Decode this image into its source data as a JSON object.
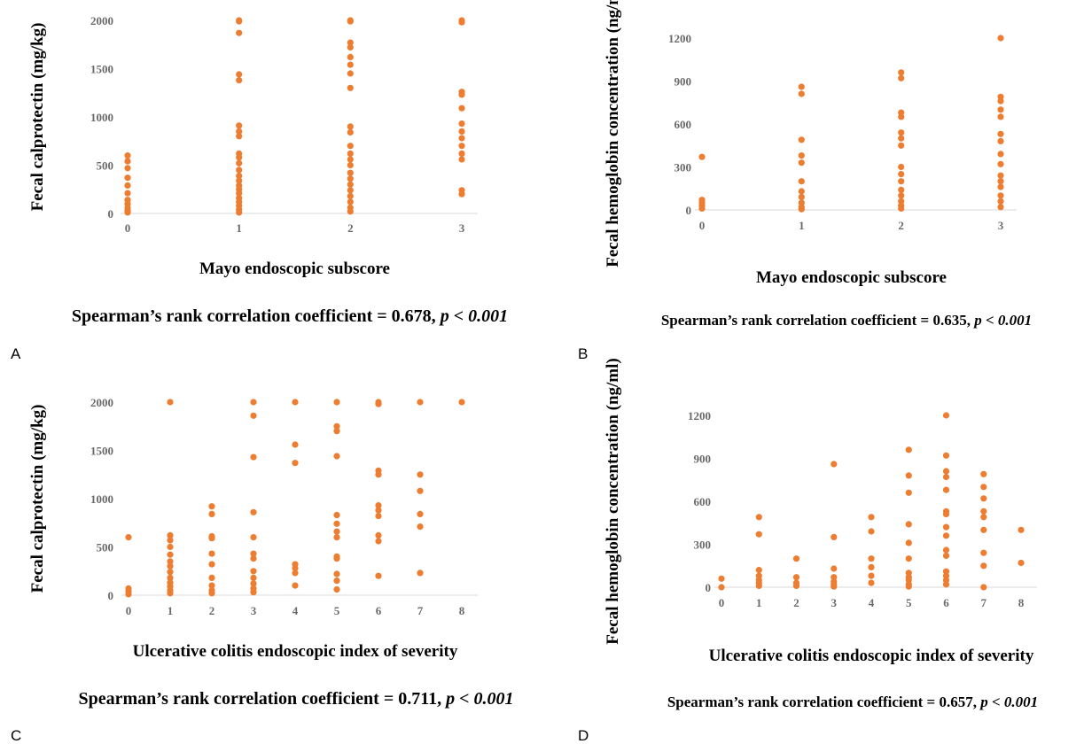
{
  "figure": {
    "background": "#ffffff",
    "marker_color": "#ed7d31"
  },
  "panels": [
    {
      "letter": "A",
      "stat_main": "Spearman’s rank correlation coefficient = 0.678, ",
      "stat_p": "p < 0.001",
      "chart_data": {
        "type": "scatter",
        "xlabel": "Mayo endoscopic subscore",
        "ylabel": "Fecal calprotectin (mg/kg)",
        "xlim": [
          0,
          3
        ],
        "ylim": [
          0,
          2000
        ],
        "xticks": [
          0,
          1,
          2,
          3
        ],
        "yticks": [
          0,
          500,
          1000,
          1500,
          2000
        ],
        "grid": false,
        "points": [
          [
            0,
            600
          ],
          [
            0,
            540
          ],
          [
            0,
            470
          ],
          [
            0,
            370
          ],
          [
            0,
            290
          ],
          [
            0,
            210
          ],
          [
            0,
            140
          ],
          [
            0,
            100
          ],
          [
            0,
            60
          ],
          [
            0,
            30
          ],
          [
            0,
            10
          ],
          [
            1,
            2000
          ],
          [
            1,
            1990
          ],
          [
            1,
            1870
          ],
          [
            1,
            1440
          ],
          [
            1,
            1380
          ],
          [
            1,
            910
          ],
          [
            1,
            850
          ],
          [
            1,
            800
          ],
          [
            1,
            620
          ],
          [
            1,
            580
          ],
          [
            1,
            520
          ],
          [
            1,
            450
          ],
          [
            1,
            390
          ],
          [
            1,
            340
          ],
          [
            1,
            290
          ],
          [
            1,
            250
          ],
          [
            1,
            210
          ],
          [
            1,
            160
          ],
          [
            1,
            120
          ],
          [
            1,
            80
          ],
          [
            1,
            40
          ],
          [
            1,
            10
          ],
          [
            2,
            2000
          ],
          [
            2,
            1990
          ],
          [
            2,
            1770
          ],
          [
            2,
            1720
          ],
          [
            2,
            1620
          ],
          [
            2,
            1540
          ],
          [
            2,
            1450
          ],
          [
            2,
            1300
          ],
          [
            2,
            900
          ],
          [
            2,
            840
          ],
          [
            2,
            700
          ],
          [
            2,
            620
          ],
          [
            2,
            560
          ],
          [
            2,
            500
          ],
          [
            2,
            420
          ],
          [
            2,
            360
          ],
          [
            2,
            300
          ],
          [
            2,
            240
          ],
          [
            2,
            180
          ],
          [
            2,
            120
          ],
          [
            2,
            60
          ],
          [
            2,
            20
          ],
          [
            3,
            2000
          ],
          [
            3,
            1980
          ],
          [
            3,
            1260
          ],
          [
            3,
            1230
          ],
          [
            3,
            1090
          ],
          [
            3,
            930
          ],
          [
            3,
            850
          ],
          [
            3,
            780
          ],
          [
            3,
            700
          ],
          [
            3,
            620
          ],
          [
            3,
            560
          ],
          [
            3,
            240
          ],
          [
            3,
            200
          ]
        ]
      }
    },
    {
      "letter": "B",
      "stat_main": "Spearman’s rank correlation coefficient = 0.635, ",
      "stat_p": "p < 0.001",
      "chart_data": {
        "type": "scatter",
        "xlabel": "Mayo endoscopic subscore",
        "ylabel": "Fecal hemoglobin concentration (ng/ml)",
        "xlim": [
          0,
          3
        ],
        "ylim": [
          0,
          1200
        ],
        "xticks": [
          0,
          1,
          2,
          3
        ],
        "yticks": [
          0,
          300,
          600,
          900,
          1200
        ],
        "grid": false,
        "points": [
          [
            0,
            370
          ],
          [
            0,
            70
          ],
          [
            0,
            50
          ],
          [
            0,
            30
          ],
          [
            0,
            10
          ],
          [
            1,
            860
          ],
          [
            1,
            810
          ],
          [
            1,
            490
          ],
          [
            1,
            380
          ],
          [
            1,
            330
          ],
          [
            1,
            200
          ],
          [
            1,
            130
          ],
          [
            1,
            90
          ],
          [
            1,
            50
          ],
          [
            1,
            20
          ],
          [
            1,
            5
          ],
          [
            2,
            960
          ],
          [
            2,
            920
          ],
          [
            2,
            680
          ],
          [
            2,
            650
          ],
          [
            2,
            540
          ],
          [
            2,
            500
          ],
          [
            2,
            450
          ],
          [
            2,
            300
          ],
          [
            2,
            250
          ],
          [
            2,
            200
          ],
          [
            2,
            140
          ],
          [
            2,
            100
          ],
          [
            2,
            60
          ],
          [
            2,
            30
          ],
          [
            2,
            10
          ],
          [
            3,
            1200
          ],
          [
            3,
            790
          ],
          [
            3,
            760
          ],
          [
            3,
            700
          ],
          [
            3,
            650
          ],
          [
            3,
            530
          ],
          [
            3,
            480
          ],
          [
            3,
            390
          ],
          [
            3,
            320
          ],
          [
            3,
            240
          ],
          [
            3,
            200
          ],
          [
            3,
            160
          ],
          [
            3,
            100
          ],
          [
            3,
            60
          ],
          [
            3,
            20
          ]
        ]
      }
    },
    {
      "letter": "C",
      "stat_main": "Spearman’s rank correlation coefficient = 0.711, ",
      "stat_p": "p < 0.001",
      "chart_data": {
        "type": "scatter",
        "xlabel": "Ulcerative colitis endoscopic index of severity",
        "ylabel": "Fecal calprotectin (mg/kg)",
        "xlim": [
          0,
          8
        ],
        "ylim": [
          0,
          2000
        ],
        "xticks": [
          0,
          1,
          2,
          3,
          4,
          5,
          6,
          7,
          8
        ],
        "yticks": [
          0,
          500,
          1000,
          1500,
          2000
        ],
        "grid": false,
        "points": [
          [
            0,
            600
          ],
          [
            0,
            70
          ],
          [
            0,
            40
          ],
          [
            0,
            10
          ],
          [
            1,
            2000
          ],
          [
            1,
            620
          ],
          [
            1,
            570
          ],
          [
            1,
            500
          ],
          [
            1,
            420
          ],
          [
            1,
            350
          ],
          [
            1,
            300
          ],
          [
            1,
            240
          ],
          [
            1,
            180
          ],
          [
            1,
            130
          ],
          [
            1,
            90
          ],
          [
            1,
            50
          ],
          [
            1,
            20
          ],
          [
            2,
            920
          ],
          [
            2,
            840
          ],
          [
            2,
            610
          ],
          [
            2,
            590
          ],
          [
            2,
            430
          ],
          [
            2,
            320
          ],
          [
            2,
            180
          ],
          [
            2,
            100
          ],
          [
            2,
            50
          ],
          [
            2,
            20
          ],
          [
            3,
            2000
          ],
          [
            3,
            1860
          ],
          [
            3,
            1430
          ],
          [
            3,
            860
          ],
          [
            3,
            600
          ],
          [
            3,
            430
          ],
          [
            3,
            380
          ],
          [
            3,
            250
          ],
          [
            3,
            180
          ],
          [
            3,
            120
          ],
          [
            3,
            70
          ],
          [
            3,
            30
          ],
          [
            4,
            2000
          ],
          [
            4,
            1560
          ],
          [
            4,
            1370
          ],
          [
            4,
            320
          ],
          [
            4,
            280
          ],
          [
            4,
            230
          ],
          [
            4,
            100
          ],
          [
            5,
            2000
          ],
          [
            5,
            1750
          ],
          [
            5,
            1700
          ],
          [
            5,
            1440
          ],
          [
            5,
            830
          ],
          [
            5,
            740
          ],
          [
            5,
            660
          ],
          [
            5,
            600
          ],
          [
            5,
            400
          ],
          [
            5,
            380
          ],
          [
            5,
            220
          ],
          [
            5,
            150
          ],
          [
            5,
            60
          ],
          [
            6,
            2000
          ],
          [
            6,
            1980
          ],
          [
            6,
            1290
          ],
          [
            6,
            1250
          ],
          [
            6,
            930
          ],
          [
            6,
            880
          ],
          [
            6,
            820
          ],
          [
            6,
            620
          ],
          [
            6,
            560
          ],
          [
            6,
            200
          ],
          [
            7,
            2000
          ],
          [
            7,
            1250
          ],
          [
            7,
            1080
          ],
          [
            7,
            840
          ],
          [
            7,
            710
          ],
          [
            7,
            230
          ],
          [
            8,
            2000
          ]
        ]
      }
    },
    {
      "letter": "D",
      "stat_main": "Spearman’s rank correlation coefficient = 0.657, ",
      "stat_p": "p < 0.001",
      "chart_data": {
        "type": "scatter",
        "xlabel": "Ulcerative colitis endoscopic index of severity",
        "ylabel": "Fecal hemoglobin concentration (ng/ml)",
        "xlim": [
          0,
          8
        ],
        "ylim": [
          0,
          1200
        ],
        "xticks": [
          0,
          1,
          2,
          3,
          4,
          5,
          6,
          7,
          8
        ],
        "yticks": [
          0,
          300,
          600,
          900,
          1200
        ],
        "grid": false,
        "points": [
          [
            0,
            60
          ],
          [
            0,
            0
          ],
          [
            1,
            490
          ],
          [
            1,
            370
          ],
          [
            1,
            120
          ],
          [
            1,
            80
          ],
          [
            1,
            50
          ],
          [
            1,
            30
          ],
          [
            1,
            10
          ],
          [
            2,
            200
          ],
          [
            2,
            70
          ],
          [
            2,
            30
          ],
          [
            2,
            10
          ],
          [
            3,
            860
          ],
          [
            3,
            350
          ],
          [
            3,
            130
          ],
          [
            3,
            70
          ],
          [
            3,
            40
          ],
          [
            3,
            20
          ],
          [
            3,
            5
          ],
          [
            4,
            490
          ],
          [
            4,
            390
          ],
          [
            4,
            200
          ],
          [
            4,
            140
          ],
          [
            4,
            80
          ],
          [
            4,
            30
          ],
          [
            5,
            960
          ],
          [
            5,
            780
          ],
          [
            5,
            660
          ],
          [
            5,
            440
          ],
          [
            5,
            310
          ],
          [
            5,
            200
          ],
          [
            5,
            100
          ],
          [
            5,
            70
          ],
          [
            5,
            50
          ],
          [
            5,
            20
          ],
          [
            5,
            5
          ],
          [
            6,
            1200
          ],
          [
            6,
            920
          ],
          [
            6,
            810
          ],
          [
            6,
            770
          ],
          [
            6,
            680
          ],
          [
            6,
            530
          ],
          [
            6,
            510
          ],
          [
            6,
            420
          ],
          [
            6,
            360
          ],
          [
            6,
            260
          ],
          [
            6,
            220
          ],
          [
            6,
            110
          ],
          [
            6,
            80
          ],
          [
            6,
            50
          ],
          [
            6,
            20
          ],
          [
            7,
            790
          ],
          [
            7,
            700
          ],
          [
            7,
            620
          ],
          [
            7,
            530
          ],
          [
            7,
            490
          ],
          [
            7,
            400
          ],
          [
            7,
            240
          ],
          [
            7,
            150
          ],
          [
            7,
            0
          ],
          [
            8,
            400
          ],
          [
            8,
            170
          ]
        ]
      }
    }
  ]
}
